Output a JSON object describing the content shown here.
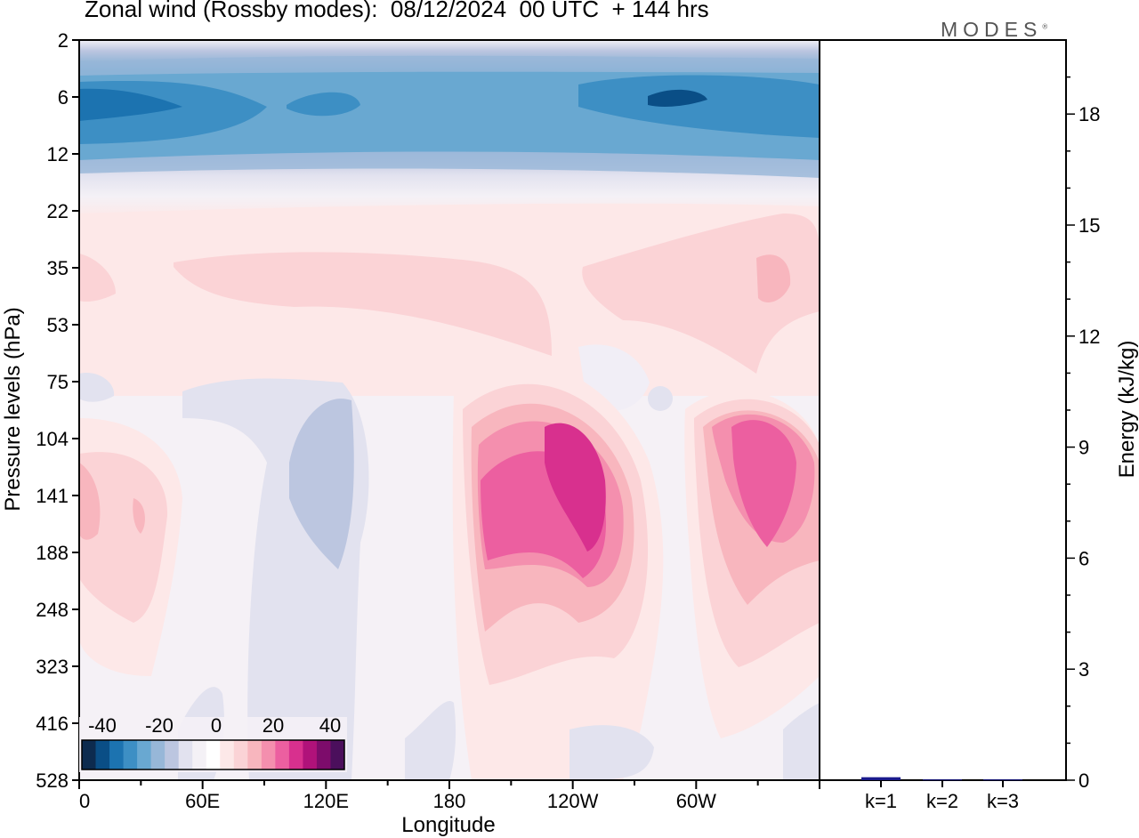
{
  "chart_data": [
    {
      "type": "heatmap",
      "title": "Zonal wind (Rossby modes):  08/12/2024  00 UTC  + 144 hrs",
      "xlabel": "Longitude",
      "ylabel": "Pressure levels (hPa)",
      "x_tick_labels": [
        "0",
        "60E",
        "120E",
        "180",
        "120W",
        "60W"
      ],
      "y_tick_labels": [
        "2",
        "6",
        "12",
        "22",
        "35",
        "53",
        "75",
        "104",
        "141",
        "188",
        "248",
        "323",
        "416",
        "528"
      ],
      "colorbar": {
        "tick_labels": [
          "-40",
          "-20",
          "0",
          "20",
          "40"
        ],
        "colors": [
          "#0d2b4f",
          "#0a4e86",
          "#1c73b0",
          "#3d8fc4",
          "#69a8d1",
          "#97b7d8",
          "#bcc6e0",
          "#e2e2ef",
          "#f4f1f6",
          "#ffffff",
          "#fde8e8",
          "#fbd3d6",
          "#f8b6be",
          "#f48fae",
          "#ec5fa0",
          "#d8308e",
          "#b0127a",
          "#7d0c6b",
          "#4b0f5c"
        ]
      }
    },
    {
      "type": "bar",
      "categories": [
        "k=1",
        "k=2",
        "k=3"
      ],
      "values": [
        0.08,
        0.02,
        0.02
      ],
      "ylabel": "Energy (kJ/kg)",
      "y_tick_labels": [
        "0",
        "3",
        "6",
        "9",
        "12",
        "15",
        "18"
      ],
      "ylim": [
        0,
        20
      ],
      "bar_color": "#1a1a8c"
    }
  ],
  "header": {
    "logo": "MODES"
  }
}
